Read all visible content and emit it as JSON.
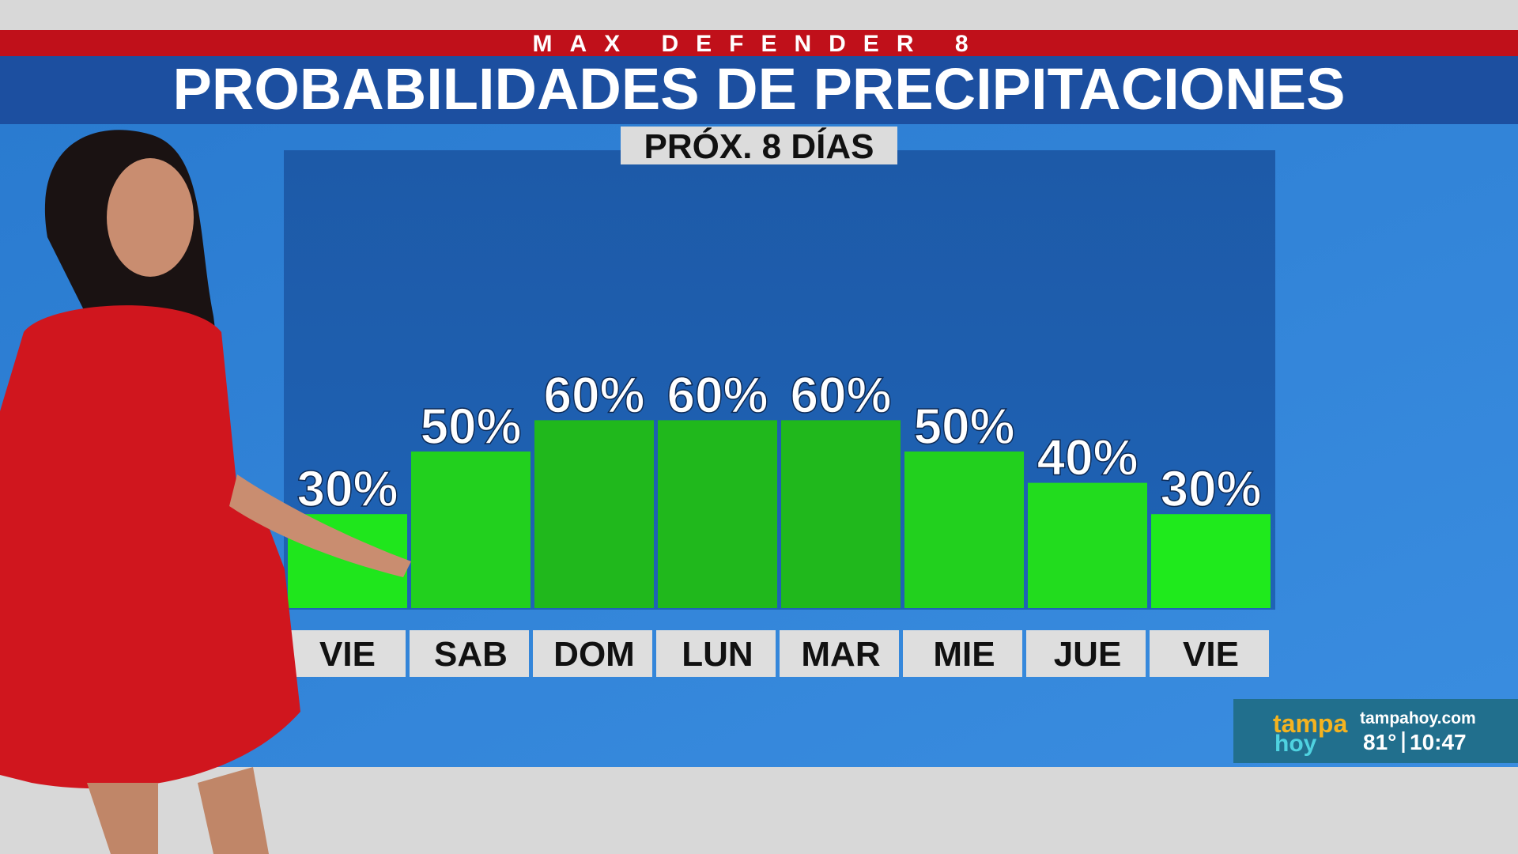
{
  "chart_data": {
    "type": "bar",
    "header": "MAX DEFENDER 8",
    "title": "PROBABILIDADES DE PRECIPITACIONES",
    "subtitle": "PRÓX. 8 DÍAS",
    "categories": [
      "VIE",
      "SAB",
      "DOM",
      "LUN",
      "MAR",
      "MIE",
      "JUE",
      "VIE"
    ],
    "values": [
      30,
      50,
      60,
      60,
      60,
      50,
      40,
      30
    ],
    "value_labels": [
      "30%",
      "50%",
      "60%",
      "60%",
      "60%",
      "50%",
      "40%",
      "30%"
    ],
    "colors": [
      "#1fe61c",
      "#22d01e",
      "#20b81c",
      "#20b81c",
      "#20b81c",
      "#22d01e",
      "#22dc1e",
      "#1fea1c"
    ],
    "ylim": [
      0,
      100
    ]
  },
  "logo": {
    "brand_top": "tampa",
    "brand_bottom": "hoy",
    "site": "tampahoy.com",
    "temperature": "81°",
    "time": "10:47"
  }
}
